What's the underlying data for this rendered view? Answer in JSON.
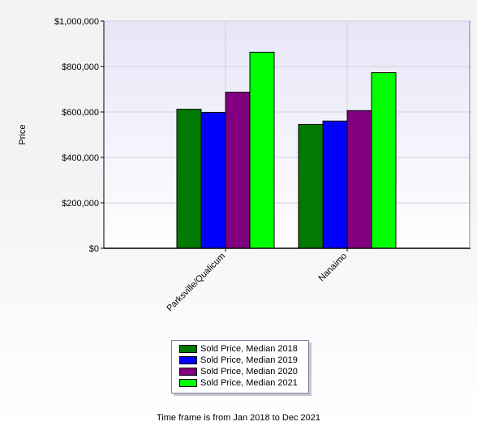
{
  "chart_data": {
    "type": "bar",
    "title": "",
    "xlabel": "",
    "ylabel": "Price",
    "ylim": [
      0,
      1000000
    ],
    "ytick_values": [
      0,
      200000,
      400000,
      600000,
      800000,
      1000000
    ],
    "ytick_labels": [
      "$0",
      "$200,000",
      "$400,000",
      "$600,000",
      "$800,000",
      "$1,000,000"
    ],
    "categories": [
      "Parksville/Qualicum",
      "Nanaimo"
    ],
    "series": [
      {
        "name": "Sold Price, Median 2018",
        "color": "#007a00",
        "values": [
          612000,
          545000
        ]
      },
      {
        "name": "Sold Price, Median 2019",
        "color": "#0000ff",
        "values": [
          598000,
          560000
        ]
      },
      {
        "name": "Sold Price, Median 2020",
        "color": "#800080",
        "values": [
          687000,
          606000
        ]
      },
      {
        "name": "Sold Price, Median 2021",
        "color": "#00ff00",
        "values": [
          863000,
          773000
        ]
      }
    ],
    "grid": true,
    "legend_position": "bottom-center"
  },
  "footer": {
    "timeframe_text": "Time frame is from Jan 2018 to Dec 2021"
  }
}
